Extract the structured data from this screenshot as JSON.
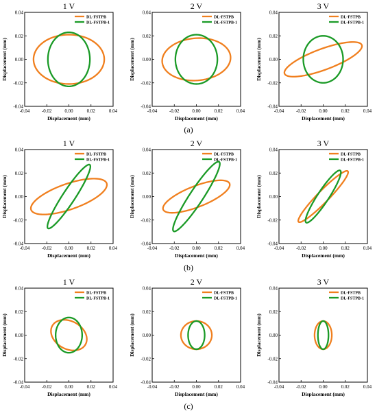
{
  "colors": {
    "DL-FSTPB": "#f07f1e",
    "DL-FSTPB-1": "#1a9a26"
  },
  "chart_data": [
    {
      "type": "line",
      "row": "a",
      "title": "1 V",
      "xlabel": "Displacement (mm)",
      "ylabel": "Displacement (mm)",
      "xlim": [
        -0.04,
        0.04
      ],
      "ylim": [
        -0.04,
        0.04
      ],
      "ticks": [
        "-0.04",
        "-0.02",
        "0.00",
        "0.02",
        "0.04"
      ],
      "series": [
        {
          "name": "DL-FSTPB",
          "ellipse": {
            "center": [
              0,
              0
            ],
            "semi_axis_a": 0.032,
            "semi_axis_b": 0.021,
            "tilt_deg": 0
          }
        },
        {
          "name": "DL-FSTPB-1",
          "ellipse": {
            "center": [
              0,
              0
            ],
            "semi_axis_a": 0.023,
            "semi_axis_b": 0.019,
            "tilt_deg": 90
          }
        }
      ]
    },
    {
      "type": "line",
      "row": "a",
      "title": "2 V",
      "xlabel": "Displacement (mm)",
      "ylabel": "Displacement (mm)",
      "xlim": [
        -0.04,
        0.04
      ],
      "ylim": [
        -0.04,
        0.04
      ],
      "ticks": [
        "-0.04",
        "-0.02",
        "0.00",
        "0.02",
        "0.04"
      ],
      "series": [
        {
          "name": "DL-FSTPB",
          "ellipse": {
            "center": [
              0,
              0
            ],
            "semi_axis_a": 0.031,
            "semi_axis_b": 0.018,
            "tilt_deg": 4
          }
        },
        {
          "name": "DL-FSTPB-1",
          "ellipse": {
            "center": [
              0,
              0
            ],
            "semi_axis_a": 0.021,
            "semi_axis_b": 0.019,
            "tilt_deg": 90
          }
        }
      ]
    },
    {
      "type": "line",
      "row": "a",
      "title": "3 V",
      "xlabel": "Displacement (mm)",
      "ylabel": "Displacement (mm)",
      "xlim": [
        -0.04,
        0.04
      ],
      "ylim": [
        -0.04,
        0.04
      ],
      "ticks": [
        "-0.04",
        "-0.02",
        "0.00",
        "0.02",
        "0.04"
      ],
      "series": [
        {
          "name": "DL-FSTPB",
          "ellipse": {
            "center": [
              0,
              0
            ],
            "semi_axis_a": 0.037,
            "semi_axis_b": 0.009,
            "tilt_deg": 19
          }
        },
        {
          "name": "DL-FSTPB-1",
          "ellipse": {
            "center": [
              0,
              0
            ],
            "semi_axis_a": 0.02,
            "semi_axis_b": 0.018,
            "tilt_deg": 90
          }
        }
      ]
    },
    {
      "type": "line",
      "row": "b",
      "title": "1 V",
      "xlabel": "Displacement (mm)",
      "ylabel": "Displacement (mm)",
      "xlim": [
        -0.04,
        0.04
      ],
      "ylim": [
        -0.04,
        0.04
      ],
      "ticks": [
        "-0.04",
        "-0.02",
        "0.00",
        "0.02",
        "0.04"
      ],
      "series": [
        {
          "name": "DL-FSTPB",
          "ellipse": {
            "center": [
              0,
              0
            ],
            "semi_axis_a": 0.036,
            "semi_axis_b": 0.011,
            "tilt_deg": 18
          }
        },
        {
          "name": "DL-FSTPB-1",
          "ellipse": {
            "center": [
              0,
              0
            ],
            "semi_axis_a": 0.033,
            "semi_axis_b": 0.0055,
            "tilt_deg": 55
          }
        }
      ]
    },
    {
      "type": "line",
      "row": "b",
      "title": "2 V",
      "xlabel": "Displacement (mm)",
      "ylabel": "Displacement (mm)",
      "xlim": [
        -0.04,
        0.04
      ],
      "ylim": [
        -0.04,
        0.04
      ],
      "ticks": [
        "-0.04",
        "-0.02",
        "0.00",
        "0.02",
        "0.04"
      ],
      "series": [
        {
          "name": "DL-FSTPB",
          "ellipse": {
            "center": [
              0,
              0
            ],
            "semi_axis_a": 0.032,
            "semi_axis_b": 0.009,
            "tilt_deg": 20
          }
        },
        {
          "name": "DL-FSTPB-1",
          "ellipse": {
            "center": [
              0,
              0
            ],
            "semi_axis_a": 0.036,
            "semi_axis_b": 0.006,
            "tilt_deg": 55
          }
        }
      ]
    },
    {
      "type": "line",
      "row": "b",
      "title": "3 V",
      "xlabel": "Displacement (mm)",
      "ylabel": "Displacement (mm)",
      "xlim": [
        -0.04,
        0.04
      ],
      "ylim": [
        -0.04,
        0.04
      ],
      "ticks": [
        "-0.04",
        "-0.02",
        "0.00",
        "0.02",
        "0.04"
      ],
      "series": [
        {
          "name": "DL-FSTPB",
          "ellipse": {
            "center": [
              0,
              0
            ],
            "semi_axis_a": 0.031,
            "semi_axis_b": 0.005,
            "tilt_deg": 44
          }
        },
        {
          "name": "DL-FSTPB-1",
          "ellipse": {
            "center": [
              0,
              0
            ],
            "semi_axis_a": 0.027,
            "semi_axis_b": 0.005,
            "tilt_deg": 55
          }
        }
      ]
    },
    {
      "type": "line",
      "row": "c",
      "title": "1 V",
      "xlabel": "Displacement (mm)",
      "ylabel": "Displacement (mm)",
      "xlim": [
        -0.04,
        0.04
      ],
      "ylim": [
        -0.04,
        0.04
      ],
      "ticks": [
        "-0.04",
        "-0.02",
        "0.00",
        "0.02",
        "0.04"
      ],
      "series": [
        {
          "name": "DL-FSTPB",
          "ellipse": {
            "center": [
              0,
              0
            ],
            "semi_axis_a": 0.017,
            "semi_axis_b": 0.012,
            "tilt_deg": -25
          }
        },
        {
          "name": "DL-FSTPB-1",
          "ellipse": {
            "center": [
              0,
              0
            ],
            "semi_axis_a": 0.015,
            "semi_axis_b": 0.012,
            "tilt_deg": 90
          }
        }
      ]
    },
    {
      "type": "line",
      "row": "c",
      "title": "2 V",
      "xlabel": "Displacement (mm)",
      "ylabel": "Displacement (mm)",
      "xlim": [
        -0.04,
        0.04
      ],
      "ylim": [
        -0.04,
        0.04
      ],
      "ticks": [
        "-0.04",
        "-0.02",
        "0.00",
        "0.02",
        "0.04"
      ],
      "series": [
        {
          "name": "DL-FSTPB",
          "ellipse": {
            "center": [
              0,
              0
            ],
            "semi_axis_a": 0.014,
            "semi_axis_b": 0.012,
            "tilt_deg": 0
          }
        },
        {
          "name": "DL-FSTPB-1",
          "ellipse": {
            "center": [
              0,
              0
            ],
            "semi_axis_a": 0.012,
            "semi_axis_b": 0.0075,
            "tilt_deg": 90
          }
        }
      ]
    },
    {
      "type": "line",
      "row": "c",
      "title": "3 V",
      "xlabel": "Displacement (mm)",
      "ylabel": "Displacement (mm)",
      "xlim": [
        -0.04,
        0.04
      ],
      "ylim": [
        -0.04,
        0.04
      ],
      "ticks": [
        "-0.04",
        "-0.02",
        "0.00",
        "0.02",
        "0.04"
      ],
      "series": [
        {
          "name": "DL-FSTPB",
          "ellipse": {
            "center": [
              0,
              0
            ],
            "semi_axis_a": 0.012,
            "semi_axis_b": 0.0078,
            "tilt_deg": 90
          }
        },
        {
          "name": "DL-FSTPB-1",
          "ellipse": {
            "center": [
              0,
              0
            ],
            "semi_axis_a": 0.012,
            "semi_axis_b": 0.0048,
            "tilt_deg": 90
          }
        }
      ]
    }
  ],
  "sub_captions": [
    "(a)",
    "(b)",
    "(c)"
  ]
}
